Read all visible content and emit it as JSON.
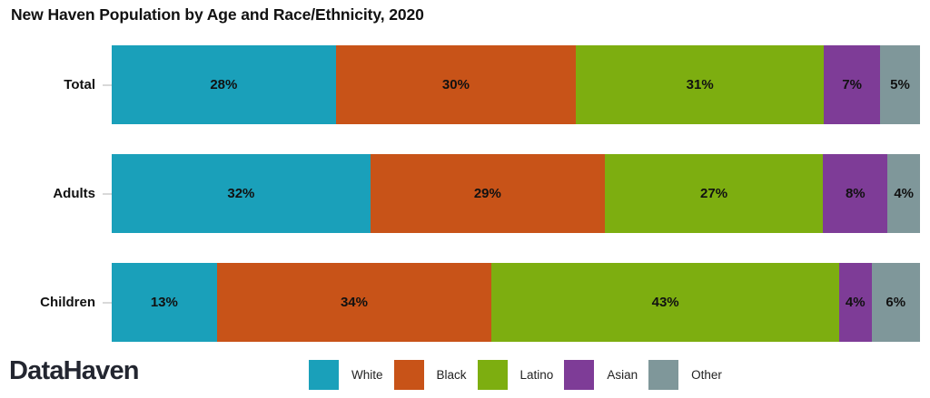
{
  "header": {
    "title": "New Haven Population by Age and Race/Ethnicity, 2020"
  },
  "footer": {
    "logo_text": "DataHaven"
  },
  "chart_data": {
    "type": "bar",
    "stacked": true,
    "orientation": "horizontal",
    "title": "New Haven Population by Age and Race/Ethnicity, 2020",
    "categories": [
      "Total",
      "Adults",
      "Children"
    ],
    "series": [
      {
        "name": "White",
        "color": "#1aa0ba",
        "values": [
          28,
          32,
          13
        ]
      },
      {
        "name": "Black",
        "color": "#c85318",
        "values": [
          30,
          29,
          34
        ]
      },
      {
        "name": "Latino",
        "color": "#7dae10",
        "values": [
          31,
          27,
          43
        ]
      },
      {
        "name": "Asian",
        "color": "#7e3c97",
        "values": [
          7,
          8,
          4
        ]
      },
      {
        "name": "Other",
        "color": "#7f979a",
        "values": [
          5,
          4,
          6
        ]
      }
    ],
    "value_suffix": "%",
    "xlim": [
      0,
      100
    ],
    "grid": false,
    "legend_position": "bottom",
    "bar_label_color": "#111111",
    "tick_color": "#d9d9d9"
  }
}
